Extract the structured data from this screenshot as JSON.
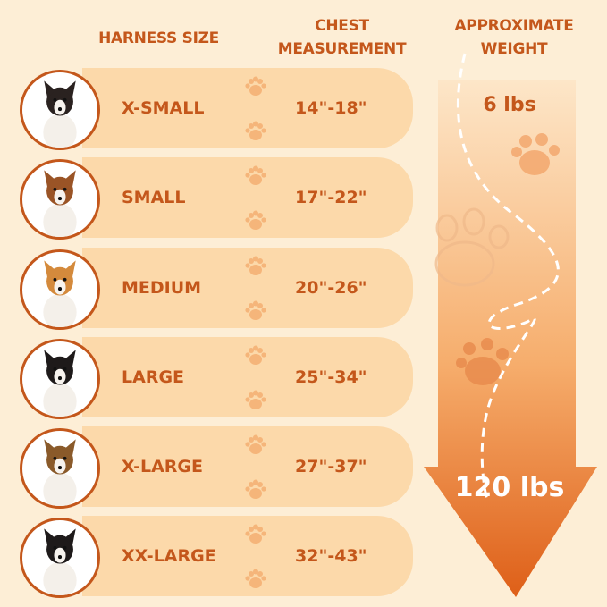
{
  "headers": {
    "size": "HARNESS SIZE",
    "chest_line1": "CHEST",
    "chest_line2": "MEASUREMENT",
    "weight_line1": "APPROXIMATE",
    "weight_line2": "WEIGHT"
  },
  "rows": [
    {
      "size": "X-SMALL",
      "chest": "14\"-18\"",
      "dog": "papillon",
      "dog_color": "#2a2220"
    },
    {
      "size": "SMALL",
      "chest": "17\"-22\"",
      "dog": "jack-russell",
      "dog_color": "#9a5426"
    },
    {
      "size": "MEDIUM",
      "chest": "20\"-26\"",
      "dog": "corgi",
      "dog_color": "#d48a3c"
    },
    {
      "size": "LARGE",
      "chest": "25\"-34\"",
      "dog": "border-collie",
      "dog_color": "#1e1a1a"
    },
    {
      "size": "X-LARGE",
      "chest": "27\"-37\"",
      "dog": "german-shepherd",
      "dog_color": "#8a5a2a"
    },
    {
      "size": "XX-LARGE",
      "chest": "32\"-43\"",
      "dog": "bernese-mountain-dog",
      "dog_color": "#1e1a1a"
    }
  ],
  "weight": {
    "min": "6 lbs",
    "max": "120 lbs"
  },
  "colors": {
    "background": "#fdeed6",
    "row": "#fcd9aa",
    "text": "#c4571b",
    "arrow_top": "#fde2bf",
    "arrow_bottom": "#e0641a",
    "paw": "#f5b57a"
  }
}
